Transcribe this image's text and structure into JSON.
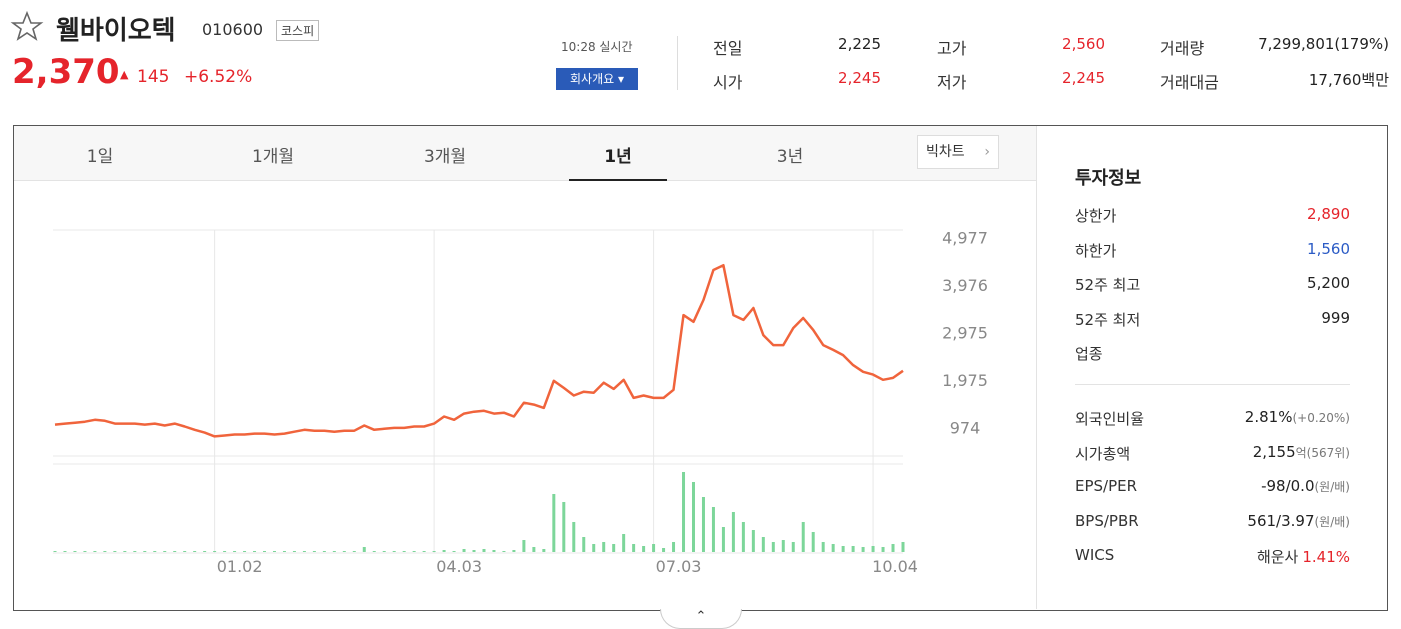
{
  "header": {
    "name": "웰바이오텍",
    "code": "010600",
    "market": "코스피",
    "price": "2,370",
    "change": "145",
    "change_pct": "+6.52%",
    "time": "10:28 실시간",
    "company_button": "회사개요"
  },
  "quote": {
    "rows": [
      [
        "전일",
        "2,225",
        "고가",
        "2,560",
        "거래량",
        "7,299,801(179%)"
      ],
      [
        "시가",
        "2,245",
        "저가",
        "2,245",
        "거래대금",
        "17,760",
        "백만"
      ]
    ]
  },
  "tabs": [
    "1일",
    "1개월",
    "3개월",
    "1년",
    "3년"
  ],
  "big_chart": "빅차트",
  "invest": {
    "title": "투자정보",
    "items": [
      [
        "상한가",
        "2,890"
      ],
      [
        "하한가",
        "1,560"
      ],
      [
        "52주 최고",
        "5,200"
      ],
      [
        "52주 최저",
        "999"
      ],
      [
        "업종"
      ]
    ],
    "items2": [
      [
        "외국인비율",
        "2.81%",
        "(+0.20%)"
      ],
      [
        "시가총액",
        "2,155",
        "억(567위)"
      ],
      [
        "EPS/PER",
        "-98/0.0",
        "(원/배)"
      ],
      [
        "BPS/PBR",
        "561/3.97",
        "(원/배)"
      ],
      [
        "WICS",
        "해운사",
        "1.41%"
      ]
    ]
  },
  "chart_data": {
    "type": "line",
    "color": "#f0643c",
    "volume_color": "#7dd69a",
    "categories": [
      null,
      null,
      null,
      null,
      null,
      null,
      null,
      null,
      null,
      null,
      null,
      null,
      null,
      null,
      null,
      null,
      "01.02",
      null,
      null,
      null,
      null,
      null,
      null,
      null,
      null,
      null,
      null,
      null,
      null,
      null,
      null,
      null,
      null,
      null,
      null,
      null,
      null,
      null,
      "04.03",
      null,
      null,
      null,
      null,
      null,
      null,
      null,
      null,
      null,
      null,
      null,
      null,
      null,
      null,
      null,
      null,
      null,
      null,
      null,
      null,
      null,
      "07.03",
      null,
      null,
      null,
      null,
      null,
      null,
      null,
      null,
      null,
      null,
      null,
      null,
      null,
      null,
      null,
      null,
      null,
      null,
      null,
      null,
      null,
      "10.04",
      null,
      null,
      null
    ],
    "values": [
      1040,
      1060,
      1080,
      1100,
      1140,
      1120,
      1060,
      1060,
      1060,
      1040,
      1060,
      1020,
      1060,
      1000,
      930,
      870,
      790,
      810,
      830,
      830,
      850,
      850,
      830,
      850,
      890,
      930,
      910,
      910,
      890,
      910,
      910,
      1020,
      930,
      950,
      970,
      970,
      1000,
      1000,
      1060,
      1210,
      1140,
      1270,
      1310,
      1330,
      1270,
      1290,
      1210,
      1500,
      1460,
      1390,
      1960,
      1810,
      1650,
      1730,
      1710,
      1920,
      1790,
      1980,
      1600,
      1650,
      1600,
      1600,
      1770,
      3340,
      3200,
      3660,
      4290,
      4390,
      3340,
      3240,
      3490,
      2920,
      2710,
      2710,
      3070,
      3280,
      3030,
      2710,
      2610,
      2500,
      2290,
      2150,
      2090,
      1980,
      2020,
      2170
    ],
    "volume": [
      1,
      1,
      1,
      1,
      1,
      1,
      1,
      1,
      1,
      1,
      1,
      1,
      1,
      1,
      1,
      1,
      1,
      1,
      1,
      1,
      1,
      1,
      1,
      1,
      1,
      1,
      1,
      1,
      1,
      1,
      1,
      5,
      1,
      1,
      1,
      1,
      1,
      1,
      1,
      2,
      1,
      3,
      2,
      3,
      2,
      1,
      2,
      12,
      5,
      3,
      58,
      50,
      30,
      15,
      8,
      10,
      8,
      18,
      8,
      6,
      8,
      4,
      10,
      80,
      70,
      55,
      45,
      25,
      40,
      30,
      22,
      15,
      10,
      12,
      10,
      30,
      20,
      10,
      8,
      6,
      6,
      5,
      6,
      5,
      8,
      10
    ],
    "ylim": [
      400,
      5130
    ],
    "yticks": [
      {
        "value": 4977,
        "label": "4,977"
      },
      {
        "value": 3976,
        "label": "3,976"
      },
      {
        "value": 2975,
        "label": "2,975"
      },
      {
        "value": 1975,
        "label": "1,975"
      },
      {
        "value": 974,
        "label": "974"
      }
    ]
  }
}
